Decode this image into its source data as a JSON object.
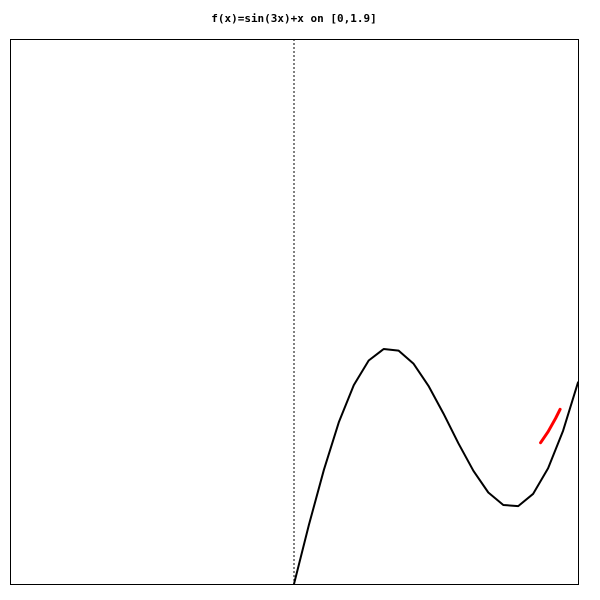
{
  "chart_data": {
    "type": "line",
    "title": "f(x)=sin(3x)+x on [0,1.9]",
    "xlabel": "",
    "ylabel": "",
    "function": "sin(3x)+x",
    "xlim": [
      -1.9,
      1.9
    ],
    "ylim": [
      0,
      3.65
    ],
    "grid": false,
    "series": [
      {
        "x": [
          0,
          0.1,
          0.2,
          0.3,
          0.4,
          0.5,
          0.6,
          0.7,
          0.8,
          0.9,
          1.0,
          1.1,
          1.2,
          1.3,
          1.4,
          1.5,
          1.6,
          1.7,
          1.8,
          1.9
        ],
        "values": [
          0,
          0.396,
          0.765,
          1.083,
          1.332,
          1.497,
          1.574,
          1.563,
          1.475,
          1.327,
          1.141,
          0.942,
          0.758,
          0.613,
          0.529,
          0.522,
          0.604,
          0.775,
          1.027,
          1.35
        ],
        "color": "#000000"
      },
      {
        "x": [
          1.65,
          1.7,
          1.75,
          1.78
        ],
        "values": [
          0.946,
          1.02,
          1.11,
          1.17
        ],
        "color": "#ff0000"
      }
    ],
    "reference_line": {
      "x": 0,
      "style": "dotted",
      "color": "#000000"
    }
  }
}
